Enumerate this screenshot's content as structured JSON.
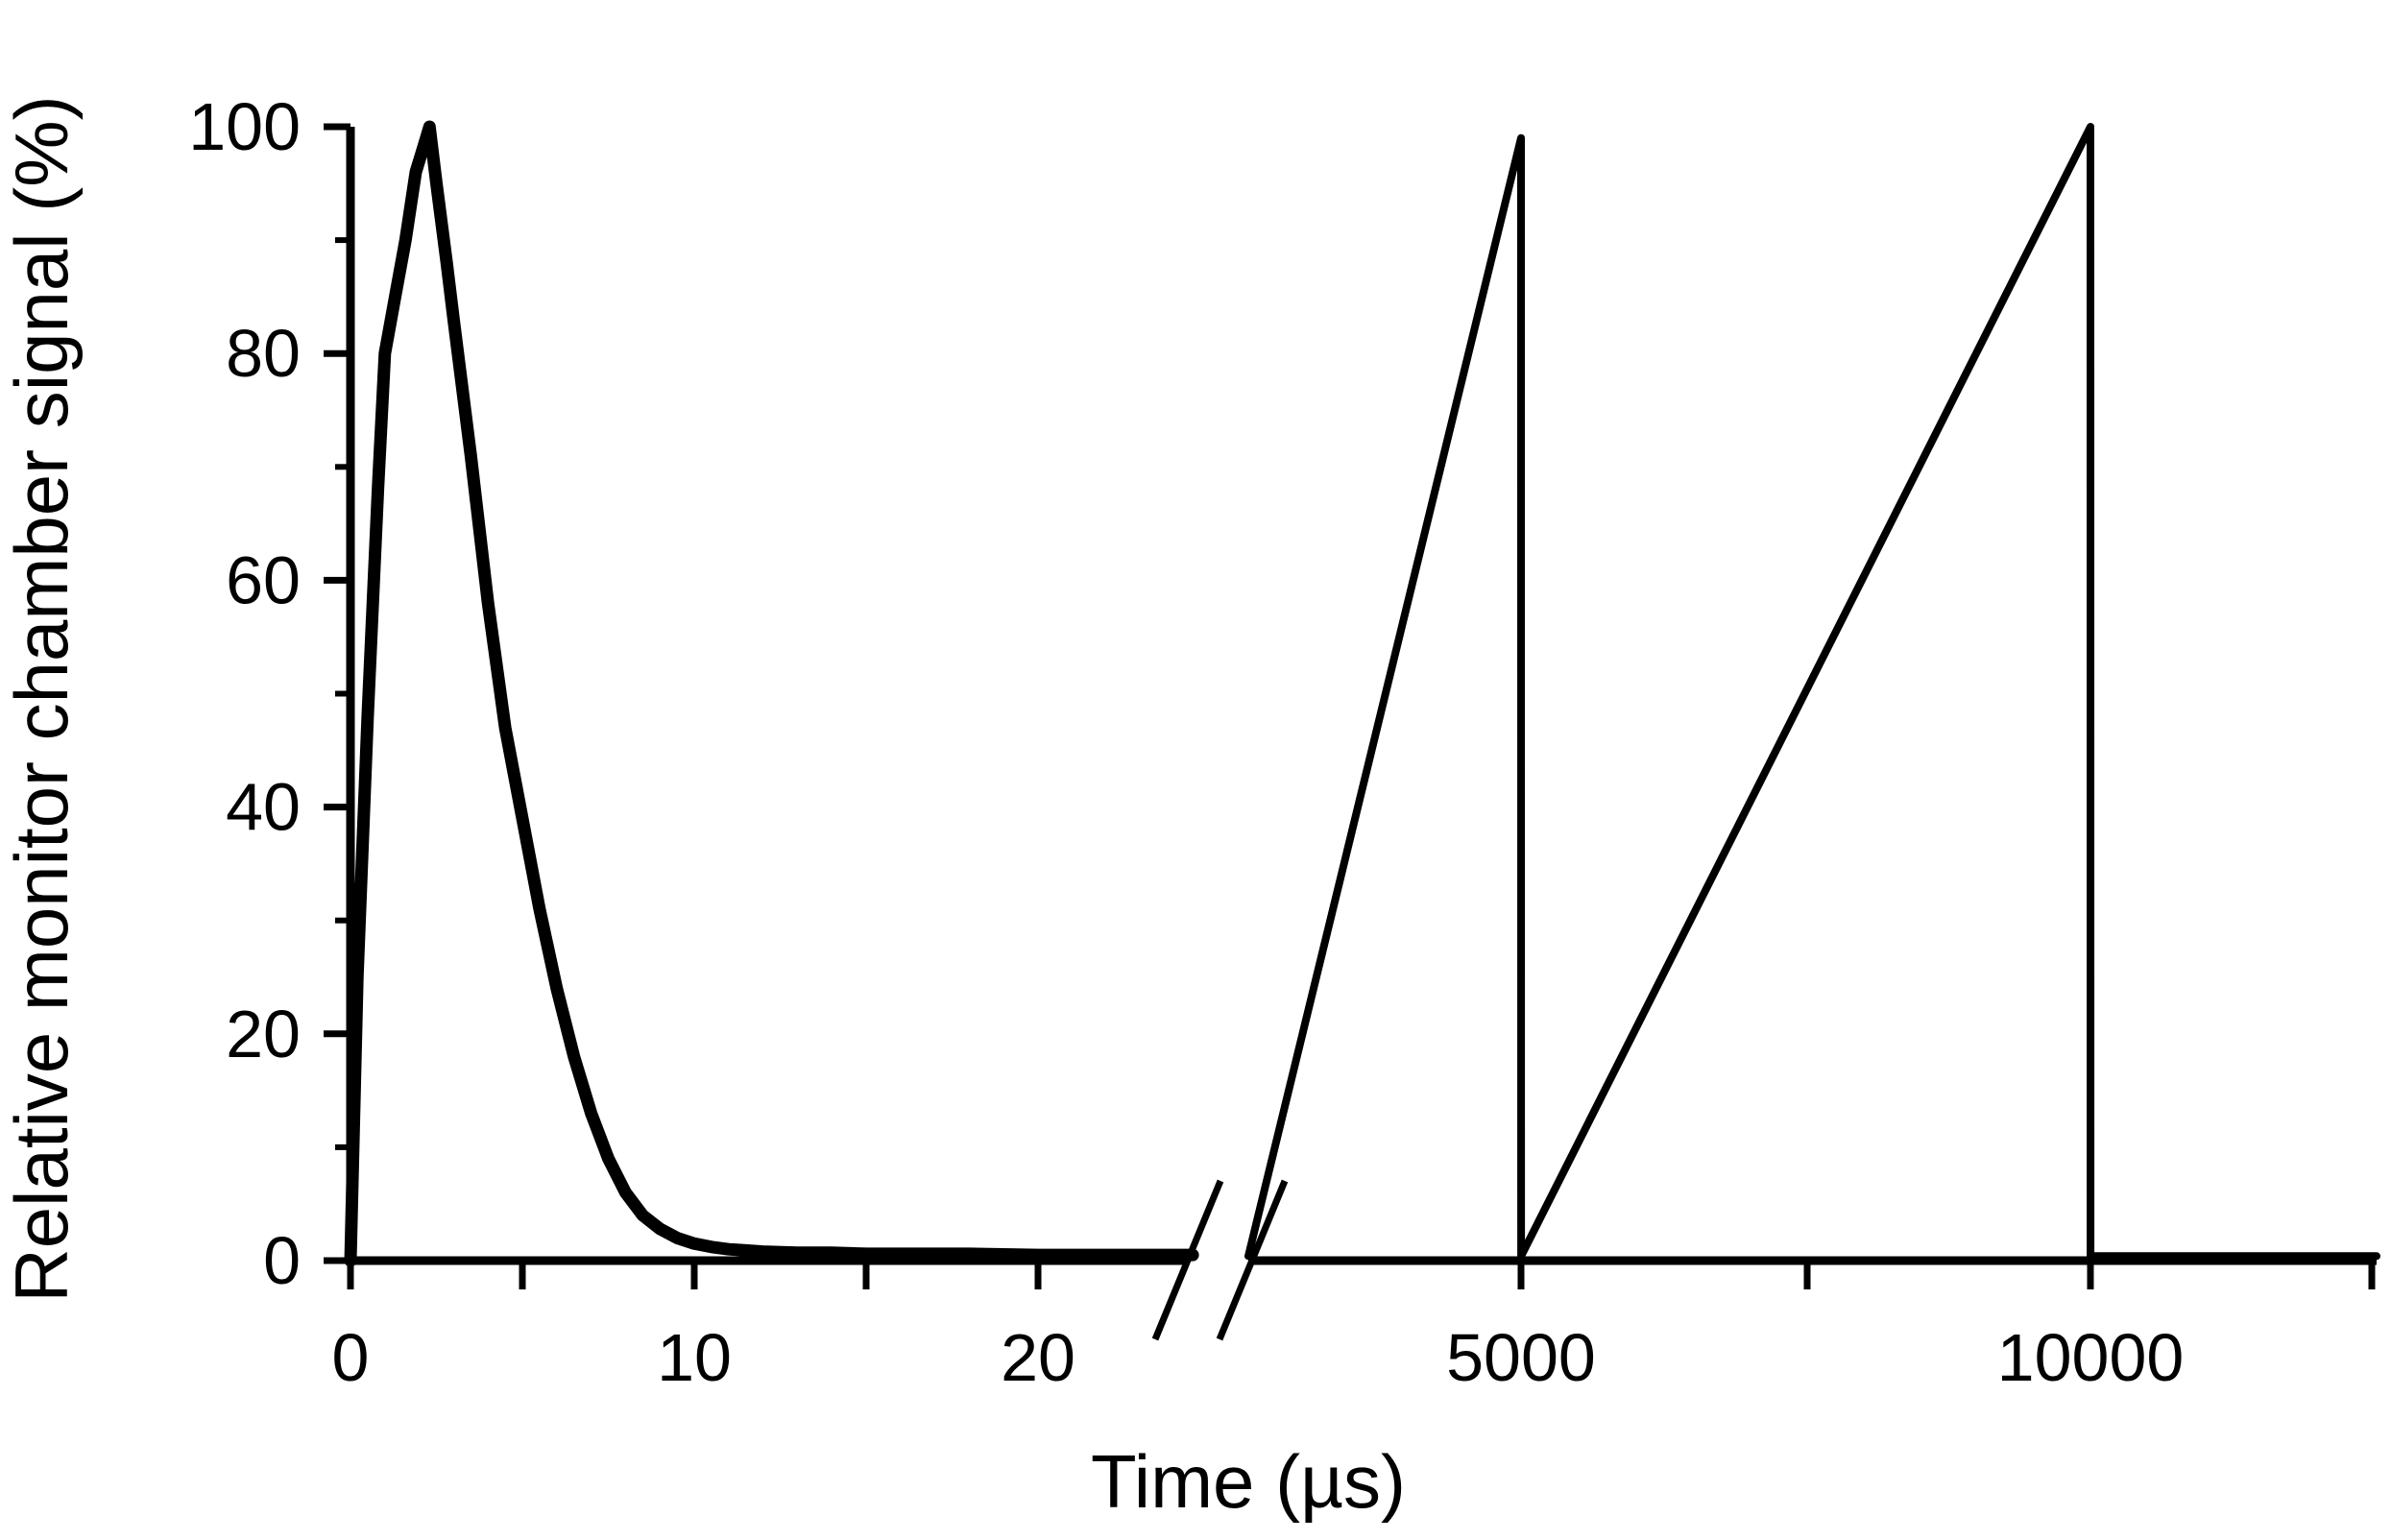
{
  "chart_data": {
    "type": "line",
    "title": "",
    "xlabel": "Time (µs)",
    "ylabel": "Relative monitor chamber signal (%)",
    "ylim": [
      0,
      100
    ],
    "y_ticks": [
      "0",
      "20",
      "40",
      "60",
      "80",
      "100"
    ],
    "x_ticks": [
      "0",
      "10",
      "20",
      "5000",
      "10000"
    ],
    "x_axis_break": true,
    "grid": false,
    "legend": "none",
    "colors": {
      "line": "#000000",
      "axis": "#000000",
      "background": "#ffffff"
    },
    "series": [
      {
        "segment": "pulse",
        "x": [
          0,
          0.2,
          0.5,
          0.8,
          1.0,
          1.3,
          1.6,
          1.9,
          2.1,
          2.3,
          2.5,
          2.8,
          3.0,
          3.5,
          4.0,
          4.5,
          5.0,
          5.5,
          6.0,
          6.5,
          7.0,
          7.5,
          8.0,
          8.5,
          9.0,
          9.5,
          10.0,
          10.5,
          11.0,
          11.5,
          12.0,
          13.0,
          14.0,
          15.0,
          16.0,
          18.0,
          20.0,
          22.0,
          24.5
        ],
        "y": [
          0,
          25,
          48,
          68,
          80,
          85,
          90,
          96,
          98,
          100,
          95,
          88,
          83,
          71,
          58,
          47,
          39,
          31,
          24,
          18,
          13,
          9,
          6,
          4,
          2.8,
          2,
          1.5,
          1.2,
          1.0,
          0.9,
          0.8,
          0.7,
          0.7,
          0.6,
          0.6,
          0.6,
          0.5,
          0.5,
          0.5
        ]
      },
      {
        "segment": "long-time",
        "x": [
          2000,
          4999,
          5000,
          5001,
          10000,
          10001,
          10002,
          13000
        ],
        "y": [
          0.4,
          0.4,
          99,
          0.4,
          100,
          0.4,
          0.4,
          0.4
        ]
      }
    ]
  }
}
